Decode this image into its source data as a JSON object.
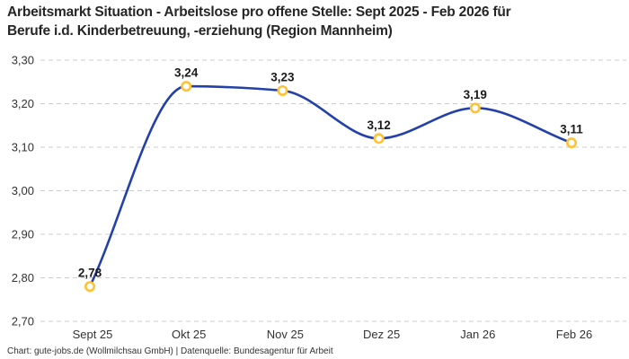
{
  "header": {
    "title": "Arbeitsmarkt Situation - Arbeitslose pro offene Stelle: Sept 2025 - Feb 2026 für\nBerufe i.d. Kinderbetreuung, -erziehung (Region Mannheim)"
  },
  "footer": {
    "attribution": "Chart: gute-jobs.de (Wollmilchsau GmbH) | Datenquelle: Bundesagentur für Arbeit"
  },
  "chart_data": {
    "type": "line",
    "title": "Arbeitsmarkt Situation - Arbeitslose pro offene Stelle: Sept 2025 - Feb 2026 für Berufe i.d. Kinderbetreuung, -erziehung (Region Mannheim)",
    "categories": [
      "Sept 25",
      "Okt 25",
      "Nov 25",
      "Dez 25",
      "Jan 26",
      "Feb 26"
    ],
    "values": [
      2.78,
      3.24,
      3.23,
      3.12,
      3.19,
      3.11
    ],
    "point_labels": [
      "2,78",
      "3,24",
      "3,23",
      "3,12",
      "3,19",
      "3,11"
    ],
    "xlabel": "",
    "ylabel": "",
    "ylim": [
      2.7,
      3.3
    ],
    "y_ticks": [
      3.3,
      3.2,
      3.1,
      3.0,
      2.9,
      2.8,
      2.7
    ],
    "y_tick_labels": [
      "3,30",
      "3,20",
      "3,10",
      "3,00",
      "2,90",
      "2,80",
      "2,70"
    ],
    "grid": "horizontal-dashed",
    "legend": "none",
    "curve": "smooth-monotone",
    "colors": {
      "line": "#2341A8",
      "marker_ring": "#FFC233",
      "marker_fill": "#FFFFFF",
      "grid": "#CCCCCC",
      "tick_text": "#333333",
      "point_label_text": "#1A1A1A"
    }
  }
}
